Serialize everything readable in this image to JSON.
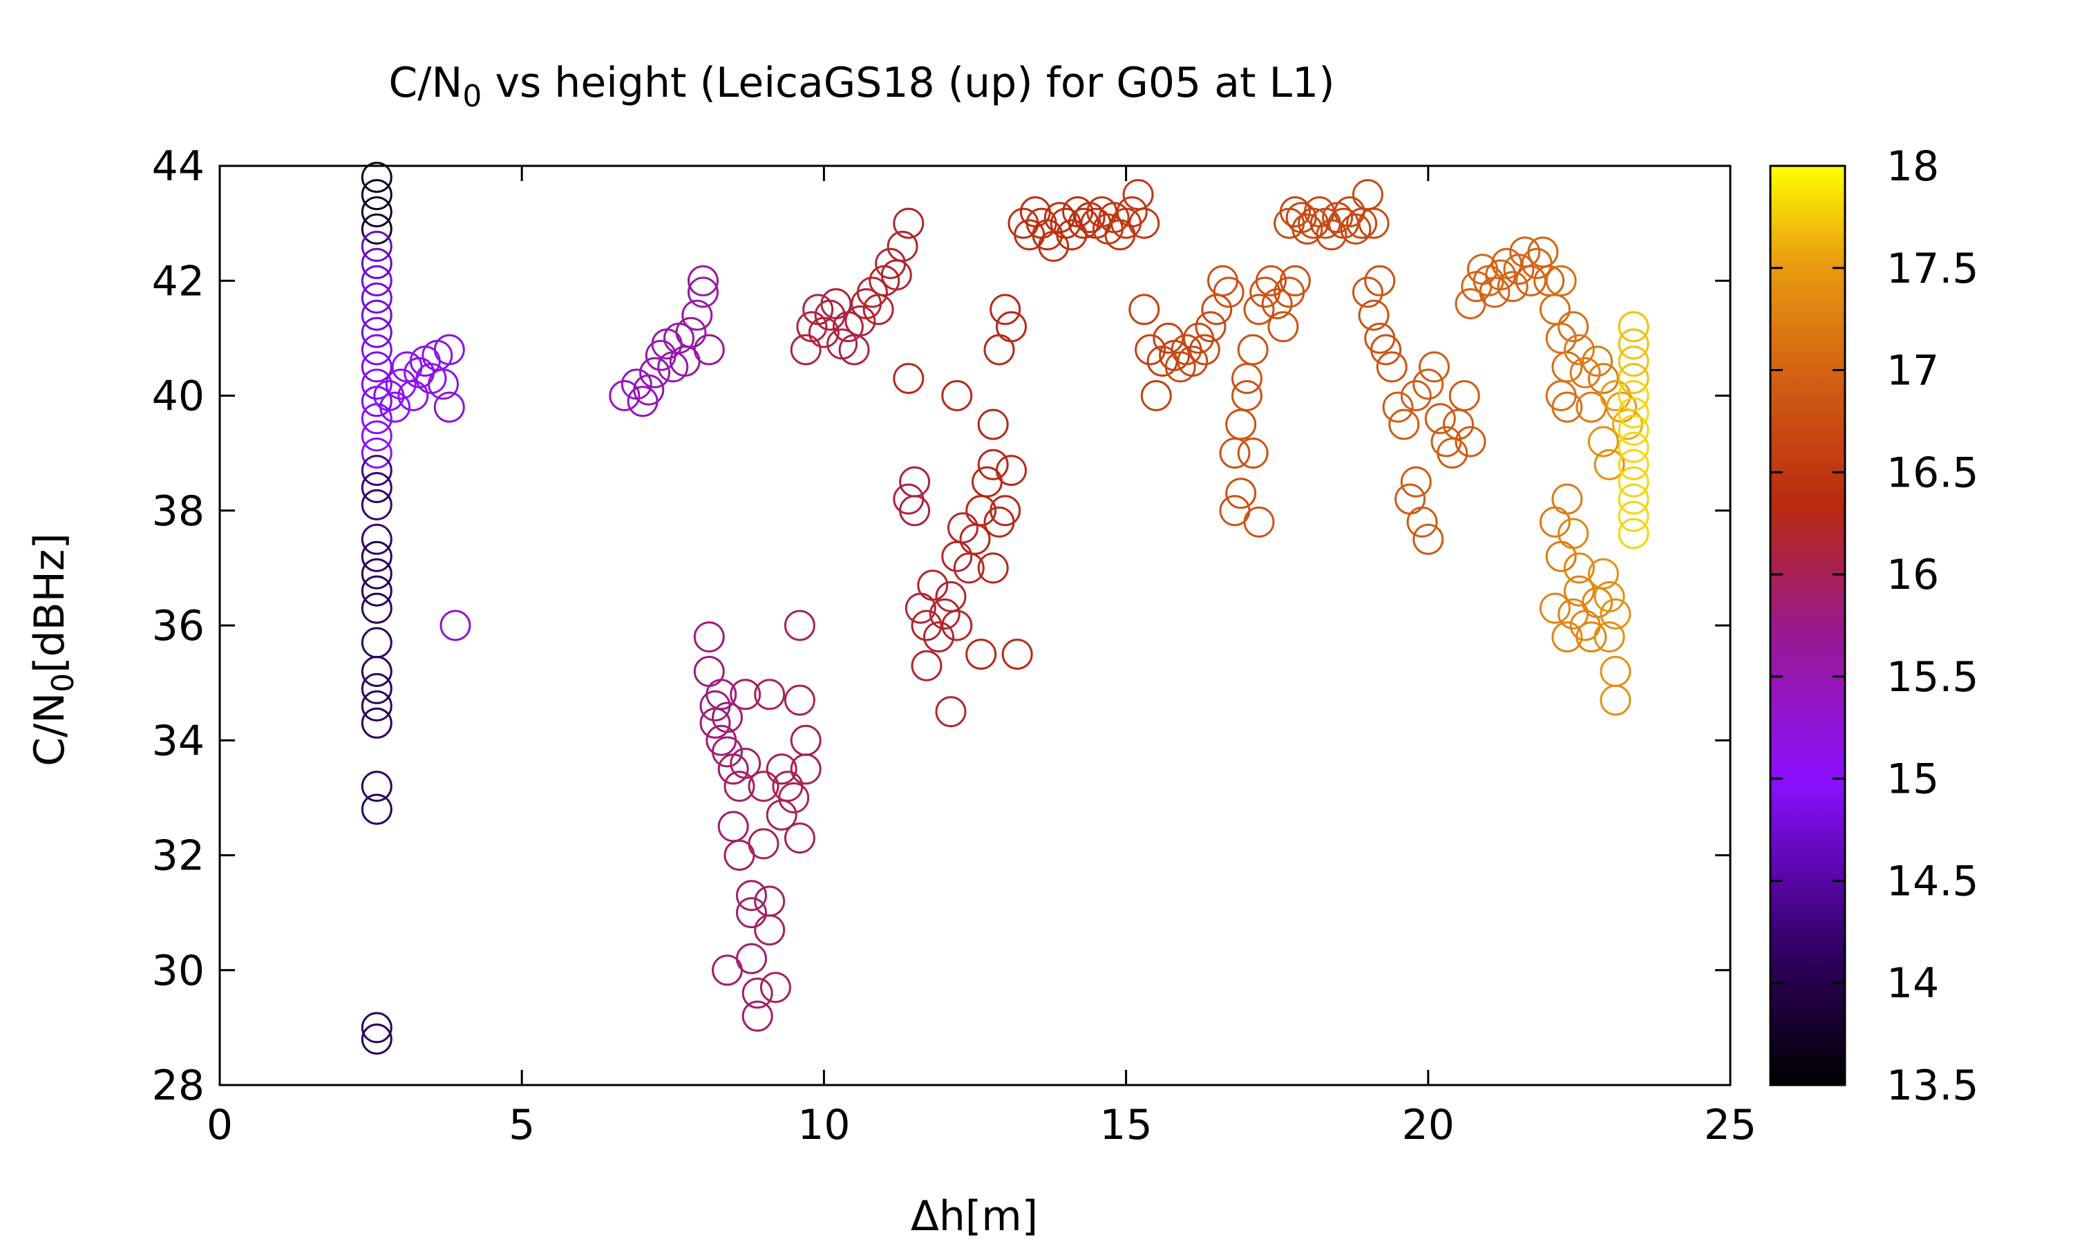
{
  "chart_data": {
    "type": "scatter",
    "title": "C/N",
    "title_sub": "0",
    "title_rest": " vs height (LeicaGS18 (up) for G05 at L1)",
    "xlabel": "Δh[m]",
    "ylabel": "C/N",
    "ylabel_sub": "0",
    "ylabel_rest": "[dBHz]",
    "xlim": [
      0,
      25
    ],
    "ylim": [
      28,
      44
    ],
    "xticks": [
      "0",
      "5",
      "10",
      "15",
      "20",
      "25"
    ],
    "yticks": [
      "28",
      "30",
      "32",
      "34",
      "36",
      "38",
      "40",
      "42",
      "44"
    ],
    "colorbar": {
      "range": [
        13.5,
        18
      ],
      "ticks": [
        "13.5",
        "14",
        "14.5",
        "15",
        "15.5",
        "16",
        "16.5",
        "17",
        "17.5",
        "18"
      ],
      "palette": "gnuplot (black-purple-red-orange-yellow)"
    },
    "marker": "open-circle",
    "grid": false,
    "points": [
      [
        2.6,
        43.8,
        13.7
      ],
      [
        2.6,
        43.5,
        13.7
      ],
      [
        2.6,
        43.2,
        13.8
      ],
      [
        2.6,
        42.9,
        13.8
      ],
      [
        2.6,
        42.6,
        14.7
      ],
      [
        2.6,
        42.3,
        14.7
      ],
      [
        2.6,
        42.0,
        14.8
      ],
      [
        2.6,
        41.7,
        14.8
      ],
      [
        2.6,
        41.4,
        14.8
      ],
      [
        2.6,
        41.1,
        14.8
      ],
      [
        2.6,
        40.8,
        14.9
      ],
      [
        2.6,
        40.5,
        14.9
      ],
      [
        2.6,
        40.2,
        14.9
      ],
      [
        2.6,
        39.9,
        14.9
      ],
      [
        2.6,
        39.6,
        15.0
      ],
      [
        2.6,
        39.3,
        15.0
      ],
      [
        2.6,
        39.0,
        15.0
      ],
      [
        2.6,
        38.7,
        14.3
      ],
      [
        2.6,
        38.4,
        14.2
      ],
      [
        2.6,
        38.1,
        14.2
      ],
      [
        2.6,
        37.5,
        14.2
      ],
      [
        2.6,
        37.2,
        14.1
      ],
      [
        2.6,
        36.9,
        14.1
      ],
      [
        2.6,
        36.6,
        14.1
      ],
      [
        2.6,
        36.3,
        14.1
      ],
      [
        2.6,
        35.7,
        14.1
      ],
      [
        2.6,
        35.2,
        14.1
      ],
      [
        2.6,
        34.9,
        14.1
      ],
      [
        2.6,
        34.6,
        14.1
      ],
      [
        2.6,
        34.3,
        14.1
      ],
      [
        2.6,
        33.2,
        14.1
      ],
      [
        2.6,
        32.8,
        14.1
      ],
      [
        2.6,
        29.0,
        14.1
      ],
      [
        2.6,
        28.8,
        14.1
      ],
      [
        2.8,
        40.0,
        15.0
      ],
      [
        2.9,
        39.8,
        15.0
      ],
      [
        3.0,
        40.2,
        15.0
      ],
      [
        3.1,
        40.5,
        15.1
      ],
      [
        3.2,
        40.0,
        15.1
      ],
      [
        3.3,
        40.4,
        15.1
      ],
      [
        3.4,
        40.6,
        15.1
      ],
      [
        3.5,
        40.3,
        15.1
      ],
      [
        3.6,
        40.7,
        15.2
      ],
      [
        3.7,
        40.2,
        15.2
      ],
      [
        3.8,
        39.8,
        15.2
      ],
      [
        3.8,
        40.8,
        15.2
      ],
      [
        3.9,
        36.0,
        15.3
      ],
      [
        6.7,
        40.0,
        15.4
      ],
      [
        6.9,
        40.2,
        15.4
      ],
      [
        7.0,
        39.9,
        15.4
      ],
      [
        7.1,
        40.1,
        15.5
      ],
      [
        7.2,
        40.4,
        15.5
      ],
      [
        7.3,
        40.7,
        15.5
      ],
      [
        7.4,
        40.9,
        15.5
      ],
      [
        7.5,
        40.5,
        15.5
      ],
      [
        7.6,
        41.0,
        15.5
      ],
      [
        7.7,
        40.6,
        15.6
      ],
      [
        7.8,
        41.1,
        15.6
      ],
      [
        7.9,
        41.4,
        15.6
      ],
      [
        8.0,
        41.8,
        15.6
      ],
      [
        8.0,
        42.0,
        15.6
      ],
      [
        8.1,
        40.8,
        15.6
      ],
      [
        8.1,
        35.8,
        15.8
      ],
      [
        8.1,
        35.2,
        15.8
      ],
      [
        8.2,
        34.6,
        15.8
      ],
      [
        8.2,
        34.3,
        15.8
      ],
      [
        8.3,
        34.0,
        15.8
      ],
      [
        8.3,
        34.8,
        15.8
      ],
      [
        8.4,
        34.4,
        15.9
      ],
      [
        8.4,
        33.8,
        15.9
      ],
      [
        8.5,
        33.5,
        15.9
      ],
      [
        8.5,
        32.5,
        15.9
      ],
      [
        8.6,
        32.0,
        15.9
      ],
      [
        8.6,
        33.2,
        15.9
      ],
      [
        8.7,
        34.8,
        15.9
      ],
      [
        8.7,
        33.6,
        15.9
      ],
      [
        8.8,
        31.3,
        15.9
      ],
      [
        8.8,
        31.0,
        15.9
      ],
      [
        8.8,
        30.2,
        15.9
      ],
      [
        8.9,
        29.6,
        15.9
      ],
      [
        8.9,
        29.2,
        15.9
      ],
      [
        8.4,
        30.0,
        15.9
      ],
      [
        9.0,
        33.2,
        16.0
      ],
      [
        9.0,
        32.2,
        16.0
      ],
      [
        9.1,
        31.2,
        16.0
      ],
      [
        9.1,
        30.7,
        16.0
      ],
      [
        9.1,
        34.8,
        16.0
      ],
      [
        9.2,
        29.7,
        16.0
      ],
      [
        9.3,
        33.5,
        16.0
      ],
      [
        9.3,
        32.7,
        16.0
      ],
      [
        9.4,
        33.2,
        16.0
      ],
      [
        9.5,
        33.0,
        16.0
      ],
      [
        9.6,
        34.7,
        16.0
      ],
      [
        9.6,
        32.3,
        16.0
      ],
      [
        9.7,
        34.0,
        16.0
      ],
      [
        9.7,
        33.5,
        16.0
      ],
      [
        9.6,
        36.0,
        16.0
      ],
      [
        9.7,
        40.8,
        16.1
      ],
      [
        9.8,
        41.2,
        16.1
      ],
      [
        9.9,
        41.5,
        16.1
      ],
      [
        10.0,
        41.1,
        16.1
      ],
      [
        10.1,
        41.4,
        16.1
      ],
      [
        10.2,
        41.6,
        16.1
      ],
      [
        10.3,
        40.9,
        16.1
      ],
      [
        10.4,
        41.2,
        16.1
      ],
      [
        10.5,
        40.8,
        16.1
      ],
      [
        10.6,
        41.3,
        16.1
      ],
      [
        10.7,
        41.6,
        16.2
      ],
      [
        10.8,
        41.8,
        16.2
      ],
      [
        10.9,
        41.5,
        16.2
      ],
      [
        11.0,
        42.0,
        16.2
      ],
      [
        11.1,
        42.3,
        16.2
      ],
      [
        11.2,
        42.1,
        16.2
      ],
      [
        11.3,
        42.6,
        16.2
      ],
      [
        11.4,
        43.0,
        16.2
      ],
      [
        11.4,
        40.3,
        16.3
      ],
      [
        11.4,
        38.2,
        16.1
      ],
      [
        11.5,
        38.5,
        16.1
      ],
      [
        11.5,
        38.0,
        16.1
      ],
      [
        11.6,
        36.3,
        16.1
      ],
      [
        11.7,
        35.3,
        16.2
      ],
      [
        11.7,
        36.0,
        16.2
      ],
      [
        11.8,
        36.7,
        16.2
      ],
      [
        11.9,
        35.8,
        16.2
      ],
      [
        12.0,
        36.2,
        16.2
      ],
      [
        12.1,
        36.5,
        16.2
      ],
      [
        12.2,
        37.2,
        16.2
      ],
      [
        12.1,
        34.5,
        16.2
      ],
      [
        12.2,
        36.0,
        16.2
      ],
      [
        12.3,
        37.7,
        16.2
      ],
      [
        12.4,
        37.0,
        16.2
      ],
      [
        12.5,
        37.5,
        16.3
      ],
      [
        12.6,
        38.0,
        16.3
      ],
      [
        12.7,
        38.5,
        16.3
      ],
      [
        12.8,
        38.8,
        16.3
      ],
      [
        12.9,
        37.8,
        16.3
      ],
      [
        12.6,
        35.5,
        16.3
      ],
      [
        12.8,
        37.0,
        16.3
      ],
      [
        13.0,
        38.0,
        16.3
      ],
      [
        13.1,
        38.7,
        16.3
      ],
      [
        13.2,
        35.5,
        16.3
      ],
      [
        12.2,
        40.0,
        16.3
      ],
      [
        12.8,
        39.5,
        16.3
      ],
      [
        12.9,
        40.8,
        16.3
      ],
      [
        13.0,
        41.5,
        16.3
      ],
      [
        13.1,
        41.2,
        16.3
      ],
      [
        13.3,
        43.0,
        16.4
      ],
      [
        13.4,
        42.8,
        16.4
      ],
      [
        13.5,
        43.2,
        16.4
      ],
      [
        13.6,
        43.0,
        16.4
      ],
      [
        13.7,
        42.8,
        16.4
      ],
      [
        13.8,
        42.6,
        16.4
      ],
      [
        13.9,
        43.1,
        16.4
      ],
      [
        14.0,
        43.0,
        16.4
      ],
      [
        14.1,
        42.8,
        16.4
      ],
      [
        14.2,
        43.2,
        16.4
      ],
      [
        14.3,
        43.0,
        16.4
      ],
      [
        14.4,
        43.1,
        16.4
      ],
      [
        14.5,
        43.0,
        16.4
      ],
      [
        14.6,
        43.2,
        16.5
      ],
      [
        14.7,
        42.9,
        16.5
      ],
      [
        14.8,
        43.1,
        16.5
      ],
      [
        14.9,
        42.8,
        16.5
      ],
      [
        15.0,
        43.0,
        16.5
      ],
      [
        15.1,
        43.2,
        16.5
      ],
      [
        15.2,
        43.5,
        16.5
      ],
      [
        15.3,
        43.0,
        16.5
      ],
      [
        15.3,
        41.5,
        16.6
      ],
      [
        15.4,
        40.8,
        16.6
      ],
      [
        15.5,
        40.0,
        16.6
      ],
      [
        15.6,
        40.6,
        16.6
      ],
      [
        15.7,
        41.0,
        16.6
      ],
      [
        15.8,
        40.7,
        16.6
      ],
      [
        15.9,
        40.5,
        16.7
      ],
      [
        16.0,
        40.8,
        16.7
      ],
      [
        16.1,
        40.6,
        16.7
      ],
      [
        16.2,
        41.0,
        16.7
      ],
      [
        16.3,
        40.8,
        16.7
      ],
      [
        16.4,
        41.2,
        16.7
      ],
      [
        16.5,
        41.5,
        16.7
      ],
      [
        16.6,
        42.0,
        16.8
      ],
      [
        16.7,
        41.8,
        16.8
      ],
      [
        16.8,
        39.0,
        16.8
      ],
      [
        16.8,
        38.0,
        16.8
      ],
      [
        16.9,
        38.3,
        16.8
      ],
      [
        16.9,
        39.5,
        16.8
      ],
      [
        17.0,
        40.0,
        16.8
      ],
      [
        17.0,
        40.3,
        16.8
      ],
      [
        17.1,
        40.8,
        16.8
      ],
      [
        17.1,
        39.0,
        16.8
      ],
      [
        17.2,
        37.8,
        16.8
      ],
      [
        17.2,
        41.5,
        16.8
      ],
      [
        17.3,
        41.8,
        16.8
      ],
      [
        17.4,
        42.0,
        16.8
      ],
      [
        17.5,
        41.6,
        16.8
      ],
      [
        17.6,
        41.2,
        16.8
      ],
      [
        17.7,
        41.8,
        16.8
      ],
      [
        17.8,
        42.0,
        16.8
      ],
      [
        17.7,
        43.0,
        16.7
      ],
      [
        17.8,
        43.2,
        16.7
      ],
      [
        17.9,
        43.1,
        16.7
      ],
      [
        18.0,
        42.9,
        16.7
      ],
      [
        18.1,
        43.0,
        16.7
      ],
      [
        18.2,
        43.2,
        16.7
      ],
      [
        18.3,
        43.0,
        16.7
      ],
      [
        18.4,
        42.8,
        16.7
      ],
      [
        18.5,
        43.1,
        16.7
      ],
      [
        18.6,
        43.0,
        16.7
      ],
      [
        18.7,
        43.2,
        16.7
      ],
      [
        18.8,
        42.9,
        16.7
      ],
      [
        18.9,
        43.0,
        16.7
      ],
      [
        19.0,
        43.5,
        16.7
      ],
      [
        19.1,
        43.0,
        16.7
      ],
      [
        19.0,
        41.8,
        16.8
      ],
      [
        19.1,
        41.4,
        16.8
      ],
      [
        19.2,
        41.0,
        16.8
      ],
      [
        19.3,
        40.8,
        16.8
      ],
      [
        19.4,
        40.5,
        16.8
      ],
      [
        19.2,
        42.0,
        16.8
      ],
      [
        19.5,
        39.8,
        16.9
      ],
      [
        19.6,
        39.5,
        16.9
      ],
      [
        19.7,
        38.2,
        16.9
      ],
      [
        19.8,
        38.5,
        16.9
      ],
      [
        19.9,
        37.8,
        16.9
      ],
      [
        20.0,
        37.5,
        16.9
      ],
      [
        19.8,
        40.0,
        16.9
      ],
      [
        20.0,
        40.2,
        16.9
      ],
      [
        20.1,
        40.5,
        16.9
      ],
      [
        20.2,
        39.6,
        16.9
      ],
      [
        20.3,
        39.2,
        16.9
      ],
      [
        20.4,
        39.0,
        16.9
      ],
      [
        20.5,
        39.5,
        16.9
      ],
      [
        20.6,
        40.0,
        16.9
      ],
      [
        20.7,
        39.2,
        16.9
      ],
      [
        20.7,
        41.6,
        17.0
      ],
      [
        20.8,
        41.9,
        17.0
      ],
      [
        20.9,
        42.2,
        17.0
      ],
      [
        21.0,
        42.0,
        17.0
      ],
      [
        21.1,
        41.8,
        17.0
      ],
      [
        21.2,
        42.1,
        17.0
      ],
      [
        21.3,
        42.3,
        17.0
      ],
      [
        21.4,
        41.9,
        17.0
      ],
      [
        21.5,
        42.2,
        17.0
      ],
      [
        21.6,
        42.5,
        17.0
      ],
      [
        21.7,
        42.0,
        17.0
      ],
      [
        21.8,
        42.3,
        17.0
      ],
      [
        21.9,
        42.5,
        17.0
      ],
      [
        22.0,
        42.0,
        17.0
      ],
      [
        22.1,
        41.5,
        17.1
      ],
      [
        22.2,
        41.0,
        17.1
      ],
      [
        22.3,
        40.5,
        17.1
      ],
      [
        22.2,
        42.0,
        17.1
      ],
      [
        22.2,
        40.0,
        17.1
      ],
      [
        22.3,
        39.8,
        17.1
      ],
      [
        22.4,
        41.2,
        17.1
      ],
      [
        22.5,
        40.8,
        17.2
      ],
      [
        22.6,
        40.4,
        17.2
      ],
      [
        22.7,
        39.8,
        17.2
      ],
      [
        22.8,
        40.6,
        17.2
      ],
      [
        22.9,
        40.3,
        17.2
      ],
      [
        22.1,
        37.8,
        17.2
      ],
      [
        22.2,
        37.2,
        17.2
      ],
      [
        22.3,
        38.2,
        17.2
      ],
      [
        22.4,
        37.6,
        17.3
      ],
      [
        22.5,
        37.0,
        17.3
      ],
      [
        22.1,
        36.3,
        17.3
      ],
      [
        22.3,
        35.8,
        17.3
      ],
      [
        22.4,
        36.2,
        17.3
      ],
      [
        22.5,
        36.6,
        17.3
      ],
      [
        22.6,
        36.0,
        17.3
      ],
      [
        22.7,
        35.8,
        17.3
      ],
      [
        22.8,
        36.4,
        17.3
      ],
      [
        22.9,
        36.9,
        17.4
      ],
      [
        23.0,
        36.5,
        17.4
      ],
      [
        23.1,
        36.2,
        17.4
      ],
      [
        23.0,
        35.8,
        17.4
      ],
      [
        23.1,
        35.2,
        17.4
      ],
      [
        23.1,
        34.7,
        17.4
      ],
      [
        22.9,
        39.2,
        17.4
      ],
      [
        23.0,
        38.8,
        17.4
      ],
      [
        23.1,
        40.0,
        17.5
      ],
      [
        23.2,
        39.8,
        17.5
      ],
      [
        23.3,
        39.5,
        17.6
      ],
      [
        23.4,
        41.2,
        17.7
      ],
      [
        23.4,
        40.9,
        17.7
      ],
      [
        23.4,
        40.6,
        17.7
      ],
      [
        23.4,
        40.3,
        17.7
      ],
      [
        23.4,
        40.0,
        17.8
      ],
      [
        23.4,
        39.7,
        17.8
      ],
      [
        23.4,
        39.4,
        17.8
      ],
      [
        23.4,
        39.1,
        17.8
      ],
      [
        23.4,
        38.8,
        17.8
      ],
      [
        23.4,
        38.5,
        17.8
      ],
      [
        23.4,
        38.2,
        17.8
      ],
      [
        23.4,
        37.9,
        17.8
      ],
      [
        23.4,
        37.6,
        17.8
      ]
    ]
  }
}
